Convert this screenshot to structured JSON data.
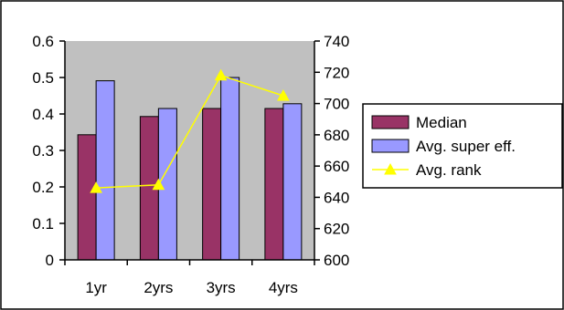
{
  "chart_data": {
    "type": "bar",
    "categories": [
      "1yr",
      "2yrs",
      "3yrs",
      "4yrs"
    ],
    "series": [
      {
        "name": "Median",
        "kind": "bar",
        "axis": "left",
        "values": [
          0.343,
          0.393,
          0.415,
          0.415
        ],
        "color": "#993366"
      },
      {
        "name": "Avg. super eff.",
        "kind": "bar",
        "axis": "left",
        "values": [
          0.491,
          0.415,
          0.5,
          0.428
        ],
        "color": "#9999FF"
      },
      {
        "name": "Avg. rank",
        "kind": "line",
        "marker": "triangle",
        "axis": "right",
        "values": [
          646,
          648,
          718,
          705
        ],
        "color": "#FFFF00"
      }
    ],
    "y_left": {
      "range": [
        0,
        0.6
      ],
      "ticks": [
        "0",
        "0.1",
        "0.2",
        "0.3",
        "0.4",
        "0.5",
        "0.6"
      ]
    },
    "y_right": {
      "range": [
        600,
        740
      ],
      "ticks": [
        "600",
        "620",
        "640",
        "660",
        "680",
        "700",
        "720",
        "740"
      ]
    },
    "plot_background": "#C0C0C0",
    "legend_position": "right",
    "grid": false
  }
}
